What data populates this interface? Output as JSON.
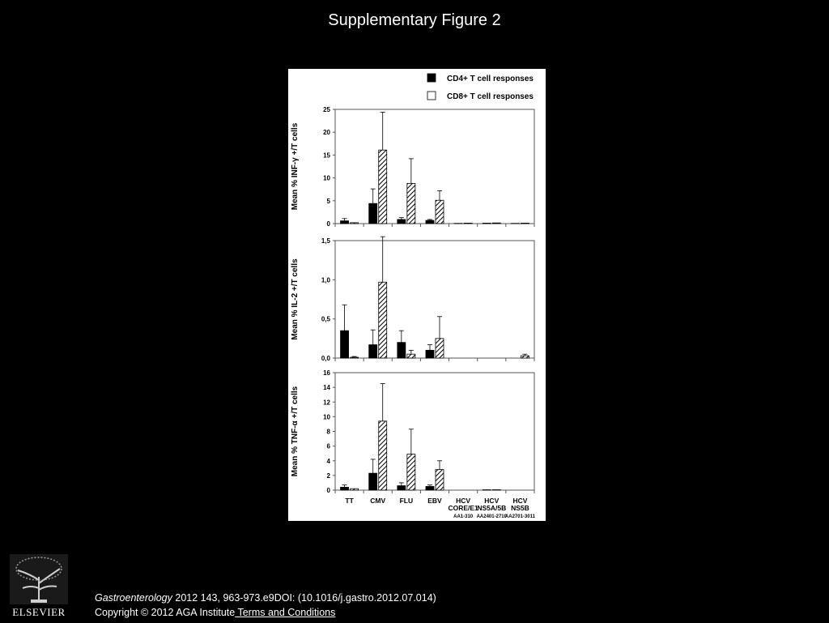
{
  "slide": {
    "title": "Supplementary Figure 2"
  },
  "citation": {
    "journal": "Gastroenterology",
    "details": " 2012 143, 963-973.e9DOI: (10.1016/j.gastro.2012.07.014)"
  },
  "copyright": {
    "text": "Copyright © 2012 AGA Institute",
    "link_label": " Terms and Conditions"
  },
  "logo": {
    "text": "ELSEVIER"
  },
  "colors": {
    "background": "#000000",
    "figure_bg": "#ffffff",
    "cd4_fill": "#000000",
    "cd8_fill": "hatched"
  },
  "chart_data": [
    {
      "type": "bar",
      "ylabel": "Mean % INF-γ +/T cells",
      "ylim": [
        0,
        25
      ],
      "yticks": [
        "0",
        "5",
        "10",
        "15",
        "20",
        "25"
      ],
      "ytick_values": [
        0,
        5,
        10,
        15,
        20,
        25
      ],
      "categories": [
        "TT",
        "CMV",
        "FLU",
        "EBV",
        "HCV CORE/E1",
        "HCV NS5A/5B",
        "HCV NS5B"
      ],
      "series": [
        {
          "name": "CD4+ T cell responses",
          "values": [
            0.6,
            4.4,
            0.9,
            0.7,
            0.05,
            0.1,
            0.05
          ],
          "errors": [
            0.5,
            3.2,
            0.4,
            0.2,
            0,
            0,
            0
          ]
        },
        {
          "name": "CD8+ T cell responses",
          "values": [
            0.2,
            16.1,
            8.8,
            5.1,
            0.1,
            0.15,
            0.1
          ],
          "errors": [
            0,
            8.3,
            5.4,
            2.1,
            0,
            0,
            0
          ]
        }
      ]
    },
    {
      "type": "bar",
      "ylabel": "Mean % IL-2 +/T cells",
      "ylim": [
        0,
        1.5
      ],
      "yticks": [
        "0,0",
        "0,5",
        "1,0",
        "1,5"
      ],
      "ytick_values": [
        0,
        0.5,
        1.0,
        1.5
      ],
      "categories": [
        "TT",
        "CMV",
        "FLU",
        "EBV",
        "HCV CORE/E1",
        "HCV NS5A/5B",
        "HCV NS5B"
      ],
      "series": [
        {
          "name": "CD4+ T cell responses",
          "values": [
            0.35,
            0.17,
            0.2,
            0.1,
            0,
            0,
            0
          ],
          "errors": [
            0.33,
            0.19,
            0.15,
            0.07,
            0,
            0,
            0
          ]
        },
        {
          "name": "CD8+ T cell responses",
          "values": [
            0.01,
            0.97,
            0.05,
            0.25,
            0,
            0,
            0.03
          ],
          "errors": [
            0.01,
            0.58,
            0.05,
            0.28,
            0,
            0,
            0.02
          ]
        }
      ]
    },
    {
      "type": "bar",
      "ylabel": "Mean % TNF-α +/T cells",
      "ylim": [
        0,
        16
      ],
      "yticks": [
        "0",
        "2",
        "4",
        "6",
        "8",
        "10",
        "12",
        "14",
        "16"
      ],
      "ytick_values": [
        0,
        2,
        4,
        6,
        8,
        10,
        12,
        14,
        16
      ],
      "categories": [
        "TT",
        "CMV",
        "FLU",
        "EBV",
        "HCV CORE/E1",
        "HCV NS5A/5B",
        "HCV NS5B"
      ],
      "category_labels": [
        [
          "TT"
        ],
        [
          "CMV"
        ],
        [
          "FLU"
        ],
        [
          "EBV"
        ],
        [
          "HCV",
          "CORE/E1",
          "AA1-310"
        ],
        [
          "HCV",
          "NS5A/5B",
          "AA2401-2710"
        ],
        [
          "HCV",
          "NS5B",
          "AA2701-3011"
        ]
      ],
      "series": [
        {
          "name": "CD4+ T cell responses",
          "values": [
            0.4,
            2.3,
            0.6,
            0.5,
            0,
            0.05,
            0
          ],
          "errors": [
            0.3,
            1.9,
            0.4,
            0.2,
            0,
            0,
            0
          ]
        },
        {
          "name": "CD8+ T cell responses",
          "values": [
            0.2,
            9.4,
            4.9,
            2.8,
            0,
            0.05,
            0
          ],
          "errors": [
            0,
            5.1,
            3.4,
            1.2,
            0,
            0,
            0
          ]
        }
      ],
      "legend": [
        "CD4+ T cell responses",
        "CD8+ T cell responses"
      ],
      "legend_position": "top-right"
    }
  ]
}
